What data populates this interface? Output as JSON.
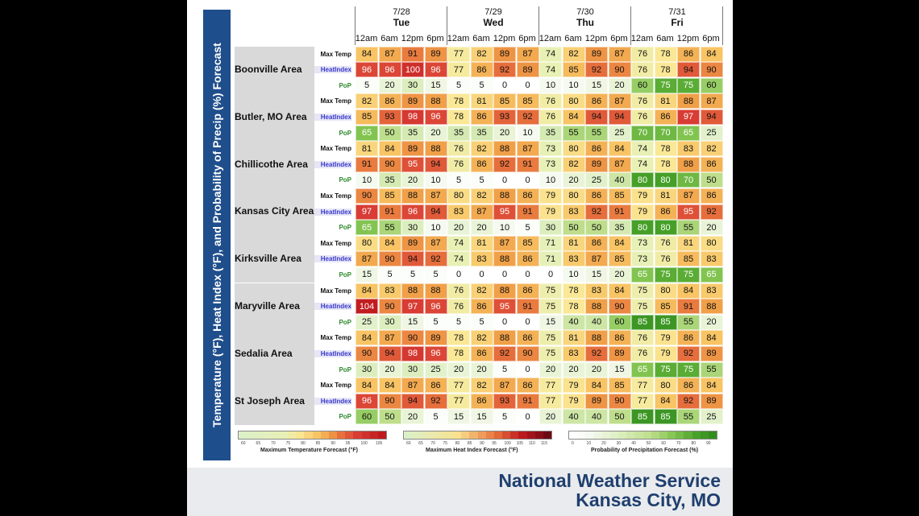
{
  "side_title": "Temperature (°F), Heat Index (°F), and Probability of Precip (%) Forecast",
  "footer": {
    "line1": "National Weather Service",
    "line2": "Kansas City, MO"
  },
  "chart_data": {
    "type": "table",
    "days": [
      {
        "date": "7/28",
        "day": "Tue"
      },
      {
        "date": "7/29",
        "day": "Wed"
      },
      {
        "date": "7/30",
        "day": "Thu"
      },
      {
        "date": "7/31",
        "day": "Fri"
      }
    ],
    "hours": [
      "12am",
      "6am",
      "12pm",
      "6pm"
    ],
    "metrics": [
      "Max Temp",
      "HeatIndex",
      "PoP"
    ],
    "areas": [
      {
        "name": "Boonville Area",
        "max_temp": [
          84,
          87,
          91,
          89,
          77,
          82,
          89,
          87,
          74,
          82,
          89,
          87,
          76,
          78,
          86,
          84
        ],
        "heat_index": [
          96,
          96,
          100,
          96,
          77,
          86,
          92,
          89,
          74,
          85,
          92,
          90,
          76,
          78,
          94,
          90
        ],
        "pop": [
          5,
          20,
          30,
          15,
          5,
          5,
          0,
          0,
          10,
          10,
          15,
          20,
          60,
          75,
          75,
          60
        ]
      },
      {
        "name": "Butler, MO Area",
        "max_temp": [
          82,
          86,
          89,
          88,
          78,
          81,
          85,
          85,
          76,
          80,
          86,
          87,
          76,
          81,
          88,
          87
        ],
        "heat_index": [
          85,
          93,
          98,
          96,
          78,
          86,
          93,
          92,
          76,
          84,
          94,
          94,
          76,
          86,
          97,
          94
        ],
        "pop": [
          65,
          50,
          35,
          20,
          35,
          35,
          20,
          10,
          35,
          55,
          55,
          25,
          70,
          70,
          65,
          25
        ]
      },
      {
        "name": "Chillicothe Area",
        "max_temp": [
          81,
          84,
          89,
          88,
          76,
          82,
          88,
          87,
          73,
          80,
          86,
          84,
          74,
          78,
          83,
          82
        ],
        "heat_index": [
          91,
          90,
          95,
          94,
          76,
          86,
          92,
          91,
          73,
          82,
          89,
          87,
          74,
          78,
          88,
          86
        ],
        "pop": [
          10,
          35,
          20,
          10,
          5,
          5,
          0,
          0,
          10,
          20,
          25,
          40,
          80,
          80,
          70,
          50
        ]
      },
      {
        "name": "Kansas City Area",
        "max_temp": [
          90,
          85,
          88,
          87,
          80,
          82,
          88,
          86,
          79,
          80,
          86,
          85,
          79,
          81,
          87,
          86
        ],
        "heat_index": [
          97,
          91,
          96,
          94,
          83,
          87,
          95,
          91,
          79,
          83,
          92,
          91,
          79,
          86,
          95,
          92
        ],
        "pop": [
          65,
          55,
          30,
          10,
          20,
          20,
          10,
          5,
          30,
          50,
          50,
          35,
          80,
          80,
          55,
          20
        ]
      },
      {
        "name": "Kirksville Area",
        "max_temp": [
          80,
          84,
          89,
          87,
          74,
          81,
          87,
          85,
          71,
          81,
          86,
          84,
          73,
          76,
          81,
          80
        ],
        "heat_index": [
          87,
          90,
          94,
          92,
          74,
          83,
          88,
          86,
          71,
          83,
          87,
          85,
          73,
          76,
          85,
          83
        ],
        "pop": [
          15,
          5,
          5,
          5,
          0,
          0,
          0,
          0,
          0,
          10,
          15,
          20,
          65,
          75,
          75,
          65
        ]
      },
      {
        "name": "Maryville Area",
        "max_temp": [
          84,
          83,
          88,
          88,
          76,
          82,
          88,
          86,
          75,
          78,
          83,
          84,
          75,
          80,
          84,
          83
        ],
        "heat_index": [
          104,
          90,
          97,
          96,
          76,
          86,
          95,
          91,
          75,
          78,
          88,
          90,
          75,
          85,
          91,
          88
        ],
        "pop": [
          25,
          30,
          15,
          5,
          5,
          5,
          0,
          0,
          15,
          40,
          40,
          60,
          85,
          85,
          55,
          20
        ]
      },
      {
        "name": "Sedalia Area",
        "max_temp": [
          84,
          87,
          90,
          89,
          78,
          82,
          88,
          86,
          75,
          81,
          88,
          86,
          76,
          79,
          86,
          84
        ],
        "heat_index": [
          90,
          94,
          98,
          96,
          78,
          86,
          92,
          90,
          75,
          83,
          92,
          89,
          76,
          79,
          92,
          89
        ],
        "pop": [
          30,
          20,
          30,
          25,
          20,
          20,
          5,
          0,
          20,
          20,
          20,
          15,
          65,
          75,
          75,
          55
        ]
      },
      {
        "name": "St Joseph Area",
        "max_temp": [
          84,
          84,
          87,
          86,
          77,
          82,
          87,
          86,
          77,
          79,
          84,
          85,
          77,
          80,
          86,
          84
        ],
        "heat_index": [
          96,
          90,
          94,
          92,
          77,
          86,
          93,
          91,
          77,
          79,
          89,
          90,
          77,
          84,
          92,
          89
        ],
        "pop": [
          60,
          50,
          20,
          5,
          15,
          15,
          5,
          0,
          20,
          40,
          40,
          50,
          85,
          85,
          55,
          25
        ]
      }
    ],
    "legends": [
      {
        "title": "Maximum Temperature Forecast (°F)",
        "ticks": [
          "60",
          "65",
          "70",
          "75",
          "80",
          "85",
          "90",
          "95",
          "100",
          "105"
        ]
      },
      {
        "title": "Maximum Heat Index Forecast (°F)",
        "ticks": [
          "60",
          "65",
          "70",
          "75",
          "80",
          "85",
          "90",
          "95",
          "100",
          "105",
          "110",
          "115"
        ]
      },
      {
        "title": "Probability of Precipitation Forecast (%)",
        "ticks": [
          "0",
          "10",
          "20",
          "30",
          "40",
          "50",
          "60",
          "70",
          "80",
          "90"
        ]
      }
    ]
  }
}
